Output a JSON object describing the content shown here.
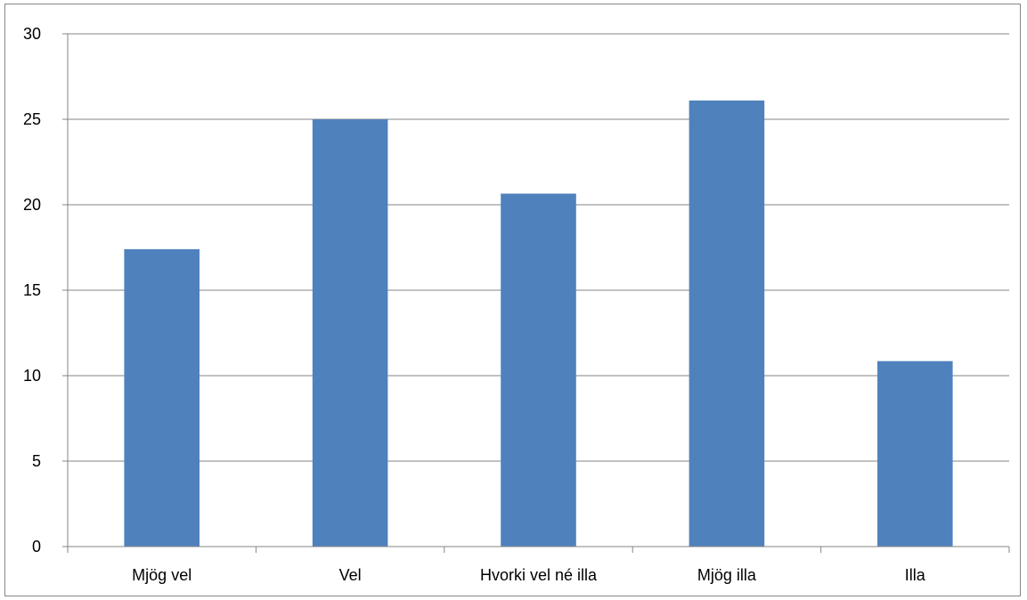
{
  "chart_data": {
    "type": "bar",
    "title": "",
    "xlabel": "",
    "ylabel": "",
    "categories": [
      "Mjög vel",
      "Vel",
      "Hvorki vel né illa",
      "Mjög illa",
      "Illa"
    ],
    "values": [
      17.4,
      25.0,
      20.65,
      26.1,
      10.85
    ],
    "ylim": [
      0,
      30
    ],
    "yticks": [
      0,
      5,
      10,
      15,
      20,
      25,
      30
    ],
    "ytick_labels": [
      "0",
      "5",
      "10",
      "15",
      "20",
      "25",
      "30"
    ],
    "grid": true,
    "legend": "none",
    "bar_color": "#4f81bd",
    "grid_color": "#868686",
    "axis_color": "#868686"
  }
}
